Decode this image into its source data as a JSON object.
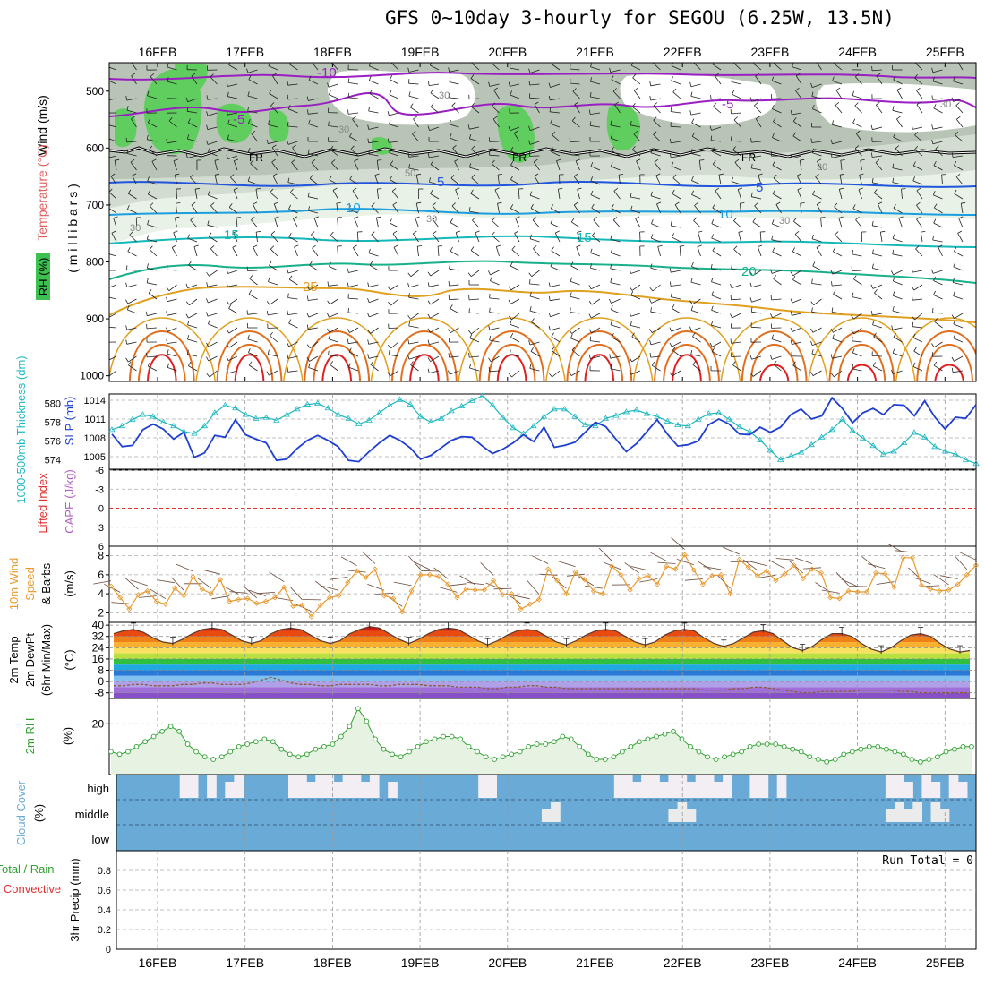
{
  "title": "GFS 0~10day 3-hourly for SEGOU (6.25W, 13.5N)",
  "dates": [
    "16FEB",
    "17FEB",
    "18FEB",
    "19FEB",
    "20FEB",
    "21FEB",
    "22FEB",
    "23FEB",
    "24FEB",
    "25FEB"
  ],
  "colors": {
    "temp_purple": "#9a1fc2",
    "temp_blue": "#2255dd",
    "temp_lightblue": "#1a9ee0",
    "temp_teal": "#14b8b8",
    "temp_green": "#18b08a",
    "temp_orange": "#e0a020",
    "temp_darkorange": "#e07020",
    "temp_red": "#e02020",
    "rh_green": "#3cc050",
    "rh_grey": "#c8d0c8",
    "slp": "#1f3fd0",
    "thickness": "#20b8c0",
    "wind": "#e89a30",
    "cloud": "#6aaad6",
    "rh2m": "#30a030",
    "dewpt": "#8a5a3a"
  },
  "panels": {
    "upper": {
      "ylabel_wind": "Wind (m/s)",
      "ylabel_temp": "Temperature (°C)",
      "ylabel_rh": "RH (%)",
      "ylabel_p": "( m i l l i b a r s )",
      "levels": [
        "500",
        "600",
        "700",
        "800",
        "900",
        "1000"
      ],
      "isotherm_labels": [
        "-10",
        "-5",
        "FR",
        "FR",
        "FR",
        "-5",
        "-5",
        "5",
        "10",
        "10",
        "15",
        "15",
        "20",
        "25",
        "5"
      ],
      "rh_labels": [
        "30",
        "30",
        "30",
        "30",
        "30",
        "30",
        "50",
        "30"
      ]
    },
    "slp": {
      "ylabel_thk": "1000-500mb Thickness (dm)",
      "ylabel_slp": "SLP (mb)",
      "thk_ticks": [
        "580",
        "578",
        "576",
        "574"
      ],
      "slp_ticks": [
        "1014",
        "1011",
        "1008",
        "1005"
      ]
    },
    "cape": {
      "ylabel_li": "Lifted Index",
      "ylabel_cape": "CAPE (J/kg)",
      "li_ticks": [
        "-6",
        "-3",
        "0",
        "3",
        "6"
      ]
    },
    "wind10": {
      "ylabel_a": "10m Wind",
      "ylabel_b": "Speed",
      "ylabel_c": "& Barbs",
      "ylabel_d": "(m/s)",
      "ticks": [
        "8",
        "6",
        "4",
        "2"
      ]
    },
    "temp2m": {
      "ylabel_a": "2m Temp",
      "ylabel_b": "2m DewPt",
      "ylabel_c": "(6hr Min/Max)",
      "ylabel_d": "(°C)",
      "ticks": [
        "40",
        "32",
        "24",
        "16",
        "8",
        "0",
        "-8"
      ]
    },
    "rh2m": {
      "ylabel": "2m RH",
      "unit": "(%)",
      "ticks": [
        "20"
      ]
    },
    "cloud": {
      "ylabel": "Cloud Cover",
      "unit": "(%)",
      "layers": [
        "high",
        "middle",
        "low"
      ]
    },
    "precip": {
      "ylabel_a": "Total / Rain",
      "ylabel_b": "Convective",
      "ylabel_c": "3hr Precip (mm)",
      "ticks": [
        "0.8",
        "0.6",
        "0.4",
        "0.2",
        "0"
      ],
      "run_total": "Run Total = 0"
    }
  },
  "chart_data": [
    {
      "type": "line",
      "name": "SLP / 1000-500mb thickness",
      "x_unit": "3-hourly steps from 15 FEB 12Z",
      "series": [
        {
          "name": "SLP (mb)",
          "values": [
            1008.6,
            1006.6,
            1006.8,
            1009.3,
            1010.2,
            1009.4,
            1007.8,
            1008.9,
            1004.9,
            1005.6,
            1008.4,
            1008.1,
            1010.9,
            1008.5,
            1007.8,
            1007.2,
            1004.4,
            1004.6,
            1006.3,
            1007.6,
            1008.4,
            1007.6,
            1006.6,
            1004.4,
            1004.2,
            1005.8,
            1007.2,
            1008.4,
            1007.6,
            1006.4,
            1004.6,
            1005.2,
            1006.4,
            1007.6,
            1008.2,
            1008.1,
            1006.7,
            1005.5,
            1006.2,
            1007.2,
            1008.5,
            1007.4,
            1009.7,
            1006.5,
            1006.8,
            1007.3,
            1008.9,
            1010.5,
            1009.8,
            1007.8,
            1005.8,
            1007.1,
            1009.0,
            1010.9,
            1008.6,
            1006.7,
            1006.9,
            1007.5,
            1010.1,
            1011.0,
            1010.2,
            1008.6,
            1008.5,
            1009.7,
            1008.9,
            1009.7,
            1011.7,
            1012.6,
            1011.0,
            1011.5,
            1014.4,
            1012.7,
            1010.4,
            1012.0,
            1012.7,
            1011.7,
            1013.3,
            1013.2,
            1011.5,
            1013.9,
            1011.3,
            1009.4,
            1011.3,
            1011.1,
            1013.3
          ]
        },
        {
          "name": "Thickness (dm)",
          "values": [
            577.2,
            577.6,
            578.3,
            578.8,
            578.6,
            578.0,
            577.6,
            577.0,
            576.8,
            577.6,
            579.0,
            579.8,
            579.5,
            578.8,
            578.4,
            578.5,
            578.2,
            578.8,
            579.4,
            579.9,
            580.0,
            579.5,
            578.8,
            578.4,
            577.8,
            578.2,
            579.0,
            579.8,
            580.4,
            579.9,
            578.6,
            578.0,
            578.4,
            579.2,
            579.7,
            580.3,
            580.8,
            579.8,
            578.5,
            577.4,
            576.8,
            577.6,
            578.6,
            579.4,
            579.4,
            578.6,
            577.7,
            577.6,
            578.4,
            578.7,
            579.1,
            579.3,
            578.9,
            578.6,
            578.1,
            577.7,
            577.6,
            578.3,
            578.9,
            579.0,
            578.3,
            577.5,
            577.0,
            576.1,
            575.0,
            574.0,
            574.4,
            574.8,
            575.6,
            576.4,
            577.2,
            578.3,
            577.1,
            576.3,
            575.5,
            574.6,
            574.9,
            575.8,
            576.9,
            576.4,
            575.4,
            574.9,
            574.6,
            574.0,
            573.6
          ]
        }
      ],
      "ylim_slp": [
        1003,
        1015
      ],
      "ylim_thk": [
        573,
        581
      ]
    },
    {
      "type": "line",
      "name": "10m Wind Speed",
      "unit": "m/s",
      "values": [
        4.8,
        3.6,
        2.4,
        3.9,
        4.3,
        3.2,
        2.9,
        4.6,
        3.8,
        5.8,
        4.5,
        4.0,
        5.5,
        3.2,
        3.4,
        3.5,
        3.0,
        3.2,
        3.6,
        4.7,
        2.7,
        2.8,
        1.6,
        2.8,
        3.6,
        3.8,
        5.2,
        6.4,
        5.7,
        6.6,
        3.8,
        3.5,
        2.1,
        4.3,
        6.0,
        6.0,
        5.8,
        5.0,
        3.6,
        4.5,
        4.4,
        4.4,
        5.4,
        3.9,
        4.0,
        2.4,
        2.9,
        3.4,
        6.6,
        5.4,
        4.0,
        6.3,
        5.5,
        4.3,
        4.0,
        6.9,
        6.0,
        4.4,
        5.6,
        5.9,
        5.0,
        6.9,
        6.6,
        8.1,
        6.5,
        5.0,
        5.9,
        6.0,
        4.0,
        7.6,
        6.8,
        5.9,
        6.4,
        5.4,
        6.1,
        7.0,
        5.6,
        6.6,
        6.2,
        3.6,
        3.5,
        4.3,
        4.2,
        4.2,
        6.2,
        6.1,
        4.7,
        7.8,
        7.8,
        4.9,
        4.5,
        4.3,
        4.4,
        5.0,
        6.0,
        7.0
      ],
      "ylim": [
        1,
        9
      ]
    },
    {
      "type": "area",
      "name": "2m Temp and DewPt",
      "unit": "°C",
      "series": [
        {
          "name": "2m Temp",
          "values": [
            34,
            36,
            37,
            35,
            31,
            28,
            27,
            30,
            34,
            37,
            38,
            37,
            33,
            29,
            27,
            29,
            34,
            37,
            38,
            37,
            33,
            29,
            27,
            29,
            34,
            37,
            39,
            38,
            34,
            30,
            27,
            30,
            34,
            37,
            38,
            37,
            33,
            29,
            26,
            29,
            33,
            36,
            37,
            36,
            32,
            28,
            26,
            29,
            33,
            36,
            37,
            36,
            32,
            28,
            26,
            28,
            33,
            36,
            37,
            36,
            31,
            27,
            25,
            27,
            31,
            35,
            36,
            34,
            29,
            24,
            22,
            25,
            30,
            34,
            34,
            32,
            27,
            23,
            21,
            24,
            29,
            33,
            34,
            32,
            27,
            23,
            21,
            22
          ]
        },
        {
          "name": "2m DewPt",
          "values": [
            -3,
            -3,
            -2,
            -2,
            -3,
            -3,
            -3,
            -2,
            -2,
            -1,
            -1,
            -2,
            -2,
            -2,
            -1,
            1,
            3,
            1,
            -1,
            -2,
            -2,
            -3,
            -3,
            -2,
            -2,
            -2,
            -2,
            -3,
            -3,
            -2,
            -2,
            -2,
            -3,
            -3,
            -3,
            -4,
            -4,
            -4,
            -5,
            -5,
            -4,
            -4,
            -3,
            -3,
            -4,
            -4,
            -5,
            -5,
            -5,
            -5,
            -5,
            -5,
            -5,
            -5,
            -5,
            -5,
            -5,
            -5,
            -5,
            -5,
            -6,
            -6,
            -6,
            -5,
            -5,
            -4,
            -4,
            -5,
            -6,
            -7,
            -8,
            -8,
            -7,
            -7,
            -7,
            -7,
            -6,
            -6,
            -6,
            -6,
            -7,
            -7,
            -8,
            -8,
            -8,
            -8,
            -8,
            -8
          ]
        }
      ],
      "ylim": [
        -12,
        42
      ]
    },
    {
      "type": "area",
      "name": "2m RH",
      "unit": "%",
      "values": [
        9,
        8,
        9,
        11,
        13,
        15,
        17,
        19,
        17,
        12,
        9,
        7,
        6,
        7,
        9,
        11,
        12,
        13,
        14,
        13,
        10,
        8,
        7,
        8,
        10,
        11,
        12,
        15,
        19,
        26,
        21,
        14,
        10,
        8,
        7,
        9,
        11,
        13,
        14,
        15,
        15,
        14,
        11,
        9,
        7,
        6,
        7,
        8,
        9,
        11,
        12,
        12,
        13,
        15,
        14,
        11,
        8,
        6,
        6,
        7,
        9,
        11,
        13,
        14,
        15,
        16,
        17,
        14,
        11,
        9,
        7,
        6,
        7,
        8,
        9,
        11,
        12,
        12,
        12,
        11,
        10,
        9,
        7,
        6,
        5,
        6,
        8,
        9,
        10,
        11,
        11,
        10,
        9,
        8,
        6,
        5,
        6,
        7,
        9,
        10,
        11,
        11
      ],
      "ylim": [
        0,
        30
      ]
    },
    {
      "type": "heatmap",
      "name": "Cloud Cover",
      "layers": [
        "high",
        "middle",
        "low"
      ],
      "note": "low cloud 0% throughout; blue=0, white=100"
    },
    {
      "type": "bar",
      "name": "3hr Precip",
      "unit": "mm",
      "values": [],
      "ylim": [
        0,
        1
      ]
    }
  ]
}
